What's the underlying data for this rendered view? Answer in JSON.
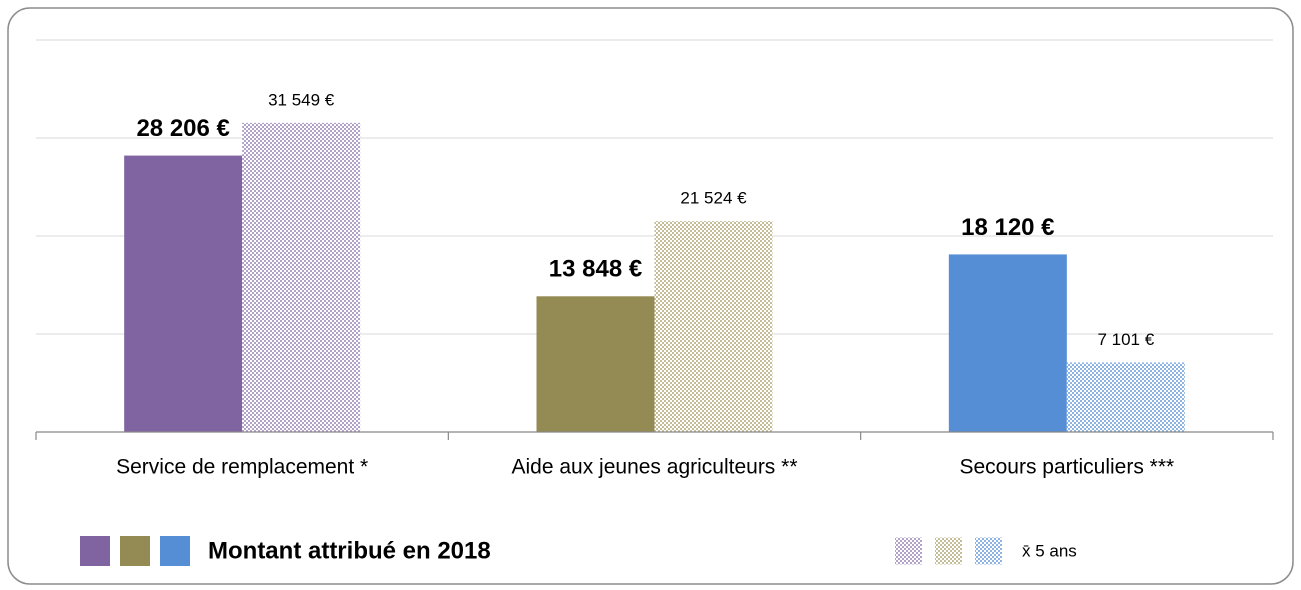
{
  "chart_data": {
    "type": "bar",
    "categories": [
      "Service de remplacement *",
      "Aide aux jeunes agriculteurs **",
      "Secours particuliers ***"
    ],
    "series": [
      {
        "name": "Montant attribué en 2018",
        "colors": [
          "#8064a2",
          "#948a54",
          "#558ed5"
        ],
        "values": [
          28206,
          13848,
          18120
        ],
        "value_labels": [
          "28 206 €",
          "13 848 €",
          "18 120 €"
        ]
      },
      {
        "name": "x̄ 5 ans",
        "colors": [
          "#b3a2c7",
          "#c4bd97",
          "#8eb4e3"
        ],
        "pattern": "checker",
        "values": [
          31549,
          21524,
          7101
        ],
        "value_labels": [
          "31 549 €",
          "21 524 €",
          "7 101 €"
        ]
      }
    ],
    "ylim": [
      0,
      40000
    ],
    "yticks": [
      0,
      10000,
      20000,
      30000,
      40000
    ],
    "grid": true
  }
}
